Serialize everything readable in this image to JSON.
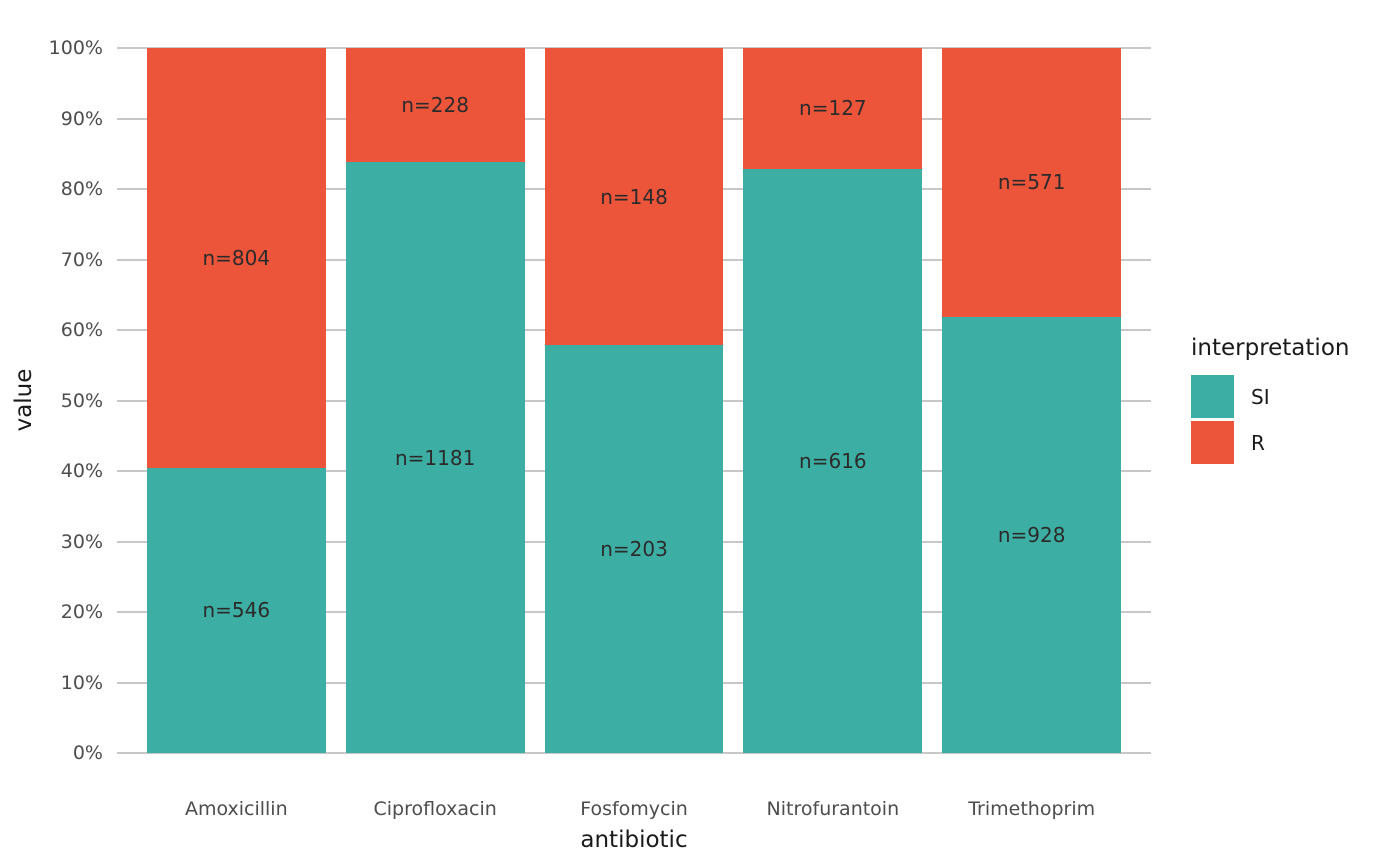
{
  "chart_data": {
    "type": "bar",
    "subtype": "stacked_percent",
    "title": "",
    "xlabel": "antibiotic",
    "ylabel": "value",
    "categories": [
      "Amoxicillin",
      "Ciprofloxacin",
      "Fosfomycin",
      "Nitrofurantoin",
      "Trimethoprim"
    ],
    "series": [
      {
        "name": "SI",
        "color": "#3CAEA3",
        "values": [
          546,
          1181,
          203,
          616,
          928
        ]
      },
      {
        "name": "R",
        "color": "#ED553B",
        "values": [
          804,
          228,
          148,
          127,
          571
        ]
      }
    ],
    "stack_order_bottom_to_top": [
      "SI",
      "R"
    ],
    "bar_label_prefix": "n=",
    "bar_labels": {
      "SI": [
        "n=546",
        "n=1181",
        "n=203",
        "n=616",
        "n=928"
      ],
      "R": [
        "n=804",
        "n=228",
        "n=148",
        "n=127",
        "n=571"
      ]
    },
    "y_axis": {
      "ticks": [
        "0%",
        "10%",
        "20%",
        "30%",
        "40%",
        "50%",
        "60%",
        "70%",
        "80%",
        "90%",
        "100%"
      ],
      "range_percent": [
        0,
        100
      ],
      "grid": true
    },
    "legend": {
      "title": "interpretation",
      "position": "right",
      "entries": [
        {
          "label": "SI",
          "color": "#3CAEA3"
        },
        {
          "label": "R",
          "color": "#ED553B"
        }
      ]
    }
  },
  "style": {
    "grid_color": "#C8C8C8",
    "tick_label_color": "#4D4D4D",
    "axis_title_color": "#1A1A1A",
    "bar_label_color": "#2B2B2B",
    "legend_text_color": "#1A1A1A",
    "background": "#FFFFFF"
  }
}
